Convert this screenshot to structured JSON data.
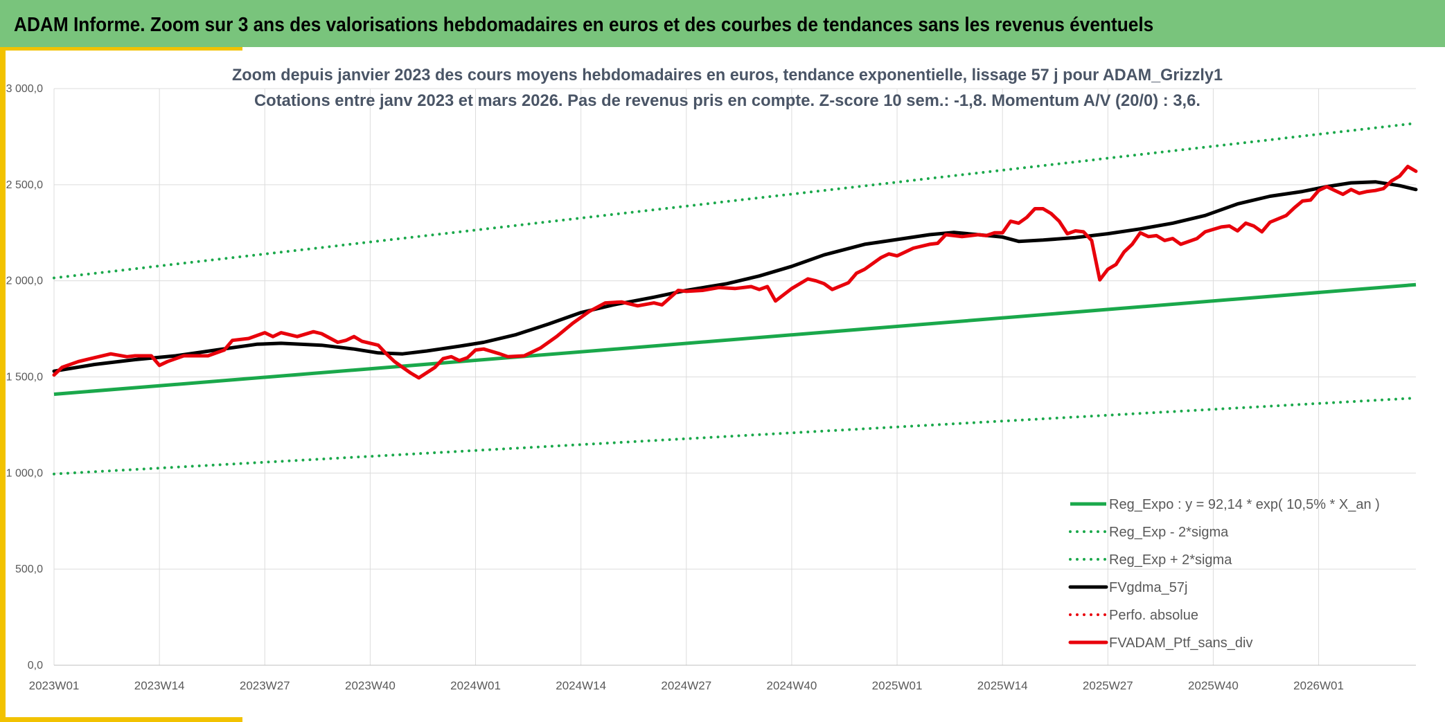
{
  "banner": {
    "title": "ADAM Informe. Zoom sur 3 ans des valorisations hebdomadaires en euros et des courbes de tendances sans les revenus éventuels"
  },
  "colors": {
    "banner_bg": "#79c47c",
    "accent": "#f2c200",
    "trend_green": "#1aa84b",
    "smooth_black": "#000000",
    "portfolio_red": "#e8000b",
    "grid": "#dcdcdc",
    "axis_text": "#595959"
  },
  "chart_data": {
    "type": "line",
    "title_line1": "Zoom depuis janvier 2023 des cours moyens hebdomadaires en euros, tendance exponentielle, lissage 57 j pour ADAM_Grizzly1",
    "title_line2": "Cotations entre janv 2023 et mars 2026. Pas de revenus pris en compte. Z-score 10 sem.: -1,8. Momentum A/V (20/0) : 3,6.",
    "ylim": [
      0,
      3000
    ],
    "y_ticks": [
      "0,0",
      "500,0",
      "1 000,0",
      "1 500,0",
      "2 000,0",
      "2 500,0",
      "3 000,0"
    ],
    "x_tick_labels": [
      "2023W01",
      "2023W14",
      "2023W27",
      "2023W40",
      "2024W01",
      "2024W14",
      "2024W27",
      "2024W40",
      "2025W01",
      "2025W14",
      "2025W27",
      "2025W40",
      "2026W01"
    ],
    "x_tick_positions": [
      0,
      13,
      26,
      39,
      52,
      65,
      78,
      91,
      104,
      117,
      130,
      143,
      156
    ],
    "x_range": [
      0,
      168
    ],
    "series": [
      {
        "name": "Reg_Expo : y = 92,14 * exp( 10,5% *  X_an )",
        "style": "solid",
        "color": "#1aa84b",
        "keypoints": [
          [
            0,
            1410
          ],
          [
            168,
            1980
          ]
        ]
      },
      {
        "name": "Reg_Exp - 2*sigma",
        "style": "dotted",
        "color": "#1aa84b",
        "keypoints": [
          [
            0,
            995
          ],
          [
            168,
            1390
          ]
        ]
      },
      {
        "name": "Reg_Exp + 2*sigma",
        "style": "dotted",
        "color": "#1aa84b",
        "keypoints": [
          [
            0,
            2015
          ],
          [
            168,
            2820
          ]
        ]
      },
      {
        "name": "FVgdma_57j",
        "style": "solid",
        "color": "#000000",
        "keypoints": [
          [
            0,
            1530
          ],
          [
            5,
            1565
          ],
          [
            10,
            1590
          ],
          [
            15,
            1610
          ],
          [
            20,
            1640
          ],
          [
            25,
            1670
          ],
          [
            28,
            1675
          ],
          [
            33,
            1665
          ],
          [
            37,
            1645
          ],
          [
            40,
            1625
          ],
          [
            43,
            1620
          ],
          [
            46,
            1635
          ],
          [
            50,
            1660
          ],
          [
            53,
            1680
          ],
          [
            57,
            1720
          ],
          [
            61,
            1775
          ],
          [
            65,
            1835
          ],
          [
            69,
            1875
          ],
          [
            74,
            1915
          ],
          [
            78,
            1950
          ],
          [
            83,
            1985
          ],
          [
            87,
            2025
          ],
          [
            91,
            2075
          ],
          [
            95,
            2135
          ],
          [
            100,
            2190
          ],
          [
            104,
            2215
          ],
          [
            108,
            2240
          ],
          [
            111,
            2252
          ],
          [
            114,
            2240
          ],
          [
            117,
            2228
          ],
          [
            119,
            2205
          ],
          [
            122,
            2212
          ],
          [
            126,
            2225
          ],
          [
            130,
            2245
          ],
          [
            134,
            2270
          ],
          [
            138,
            2300
          ],
          [
            142,
            2340
          ],
          [
            146,
            2400
          ],
          [
            150,
            2440
          ],
          [
            154,
            2465
          ],
          [
            157,
            2490
          ],
          [
            160,
            2510
          ],
          [
            163,
            2515
          ],
          [
            166,
            2495
          ],
          [
            168,
            2475
          ]
        ]
      },
      {
        "name": "Perfo. absolue",
        "style": "dotted",
        "color": "#e8000b",
        "keypoints": []
      },
      {
        "name": "FVADAM_Ptf_sans_div",
        "style": "solid",
        "color": "#e8000b",
        "keypoints": [
          [
            0,
            1510
          ],
          [
            1,
            1550
          ],
          [
            3,
            1580
          ],
          [
            5,
            1600
          ],
          [
            7,
            1620
          ],
          [
            9,
            1605
          ],
          [
            10,
            1610
          ],
          [
            12,
            1610
          ],
          [
            13,
            1560
          ],
          [
            14,
            1580
          ],
          [
            16,
            1610
          ],
          [
            19,
            1610
          ],
          [
            21,
            1640
          ],
          [
            22,
            1690
          ],
          [
            24,
            1700
          ],
          [
            26,
            1730
          ],
          [
            27,
            1710
          ],
          [
            28,
            1730
          ],
          [
            30,
            1710
          ],
          [
            32,
            1735
          ],
          [
            33,
            1725
          ],
          [
            35,
            1680
          ],
          [
            36,
            1690
          ],
          [
            37,
            1710
          ],
          [
            38,
            1685
          ],
          [
            40,
            1665
          ],
          [
            41,
            1620
          ],
          [
            42,
            1580
          ],
          [
            44,
            1520
          ],
          [
            45,
            1495
          ],
          [
            47,
            1550
          ],
          [
            48,
            1595
          ],
          [
            49,
            1605
          ],
          [
            50,
            1585
          ],
          [
            51,
            1600
          ],
          [
            52,
            1640
          ],
          [
            53,
            1645
          ],
          [
            55,
            1620
          ],
          [
            56,
            1605
          ],
          [
            58,
            1610
          ],
          [
            60,
            1650
          ],
          [
            62,
            1710
          ],
          [
            64,
            1780
          ],
          [
            66,
            1840
          ],
          [
            68,
            1885
          ],
          [
            70,
            1890
          ],
          [
            72,
            1870
          ],
          [
            74,
            1885
          ],
          [
            75,
            1875
          ],
          [
            77,
            1950
          ],
          [
            78,
            1945
          ],
          [
            80,
            1950
          ],
          [
            82,
            1965
          ],
          [
            84,
            1960
          ],
          [
            86,
            1970
          ],
          [
            87,
            1955
          ],
          [
            88,
            1970
          ],
          [
            89,
            1895
          ],
          [
            91,
            1960
          ],
          [
            93,
            2010
          ],
          [
            94,
            2000
          ],
          [
            95,
            1985
          ],
          [
            96,
            1955
          ],
          [
            98,
            1990
          ],
          [
            99,
            2040
          ],
          [
            100,
            2060
          ],
          [
            102,
            2120
          ],
          [
            103,
            2140
          ],
          [
            104,
            2130
          ],
          [
            106,
            2170
          ],
          [
            108,
            2190
          ],
          [
            109,
            2195
          ],
          [
            110,
            2240
          ],
          [
            112,
            2230
          ],
          [
            114,
            2240
          ],
          [
            115,
            2235
          ],
          [
            116,
            2250
          ],
          [
            117,
            2250
          ],
          [
            118,
            2310
          ],
          [
            119,
            2300
          ],
          [
            120,
            2330
          ],
          [
            121,
            2375
          ],
          [
            122,
            2375
          ],
          [
            123,
            2350
          ],
          [
            124,
            2310
          ],
          [
            125,
            2245
          ],
          [
            126,
            2260
          ],
          [
            127,
            2255
          ],
          [
            128,
            2210
          ],
          [
            129,
            2005
          ],
          [
            130,
            2060
          ],
          [
            131,
            2085
          ],
          [
            132,
            2150
          ],
          [
            133,
            2190
          ],
          [
            134,
            2250
          ],
          [
            135,
            2230
          ],
          [
            136,
            2235
          ],
          [
            137,
            2210
          ],
          [
            138,
            2220
          ],
          [
            139,
            2190
          ],
          [
            141,
            2220
          ],
          [
            142,
            2255
          ],
          [
            144,
            2280
          ],
          [
            145,
            2285
          ],
          [
            146,
            2260
          ],
          [
            147,
            2300
          ],
          [
            148,
            2285
          ],
          [
            149,
            2255
          ],
          [
            150,
            2305
          ],
          [
            152,
            2340
          ],
          [
            153,
            2380
          ],
          [
            154,
            2415
          ],
          [
            155,
            2420
          ],
          [
            156,
            2470
          ],
          [
            157,
            2490
          ],
          [
            158,
            2470
          ],
          [
            159,
            2450
          ],
          [
            160,
            2475
          ],
          [
            161,
            2455
          ],
          [
            162,
            2465
          ],
          [
            163,
            2470
          ],
          [
            164,
            2480
          ],
          [
            165,
            2520
          ],
          [
            166,
            2545
          ],
          [
            167,
            2595
          ],
          [
            168,
            2570
          ]
        ]
      }
    ],
    "legend_position": "bottom-right"
  }
}
